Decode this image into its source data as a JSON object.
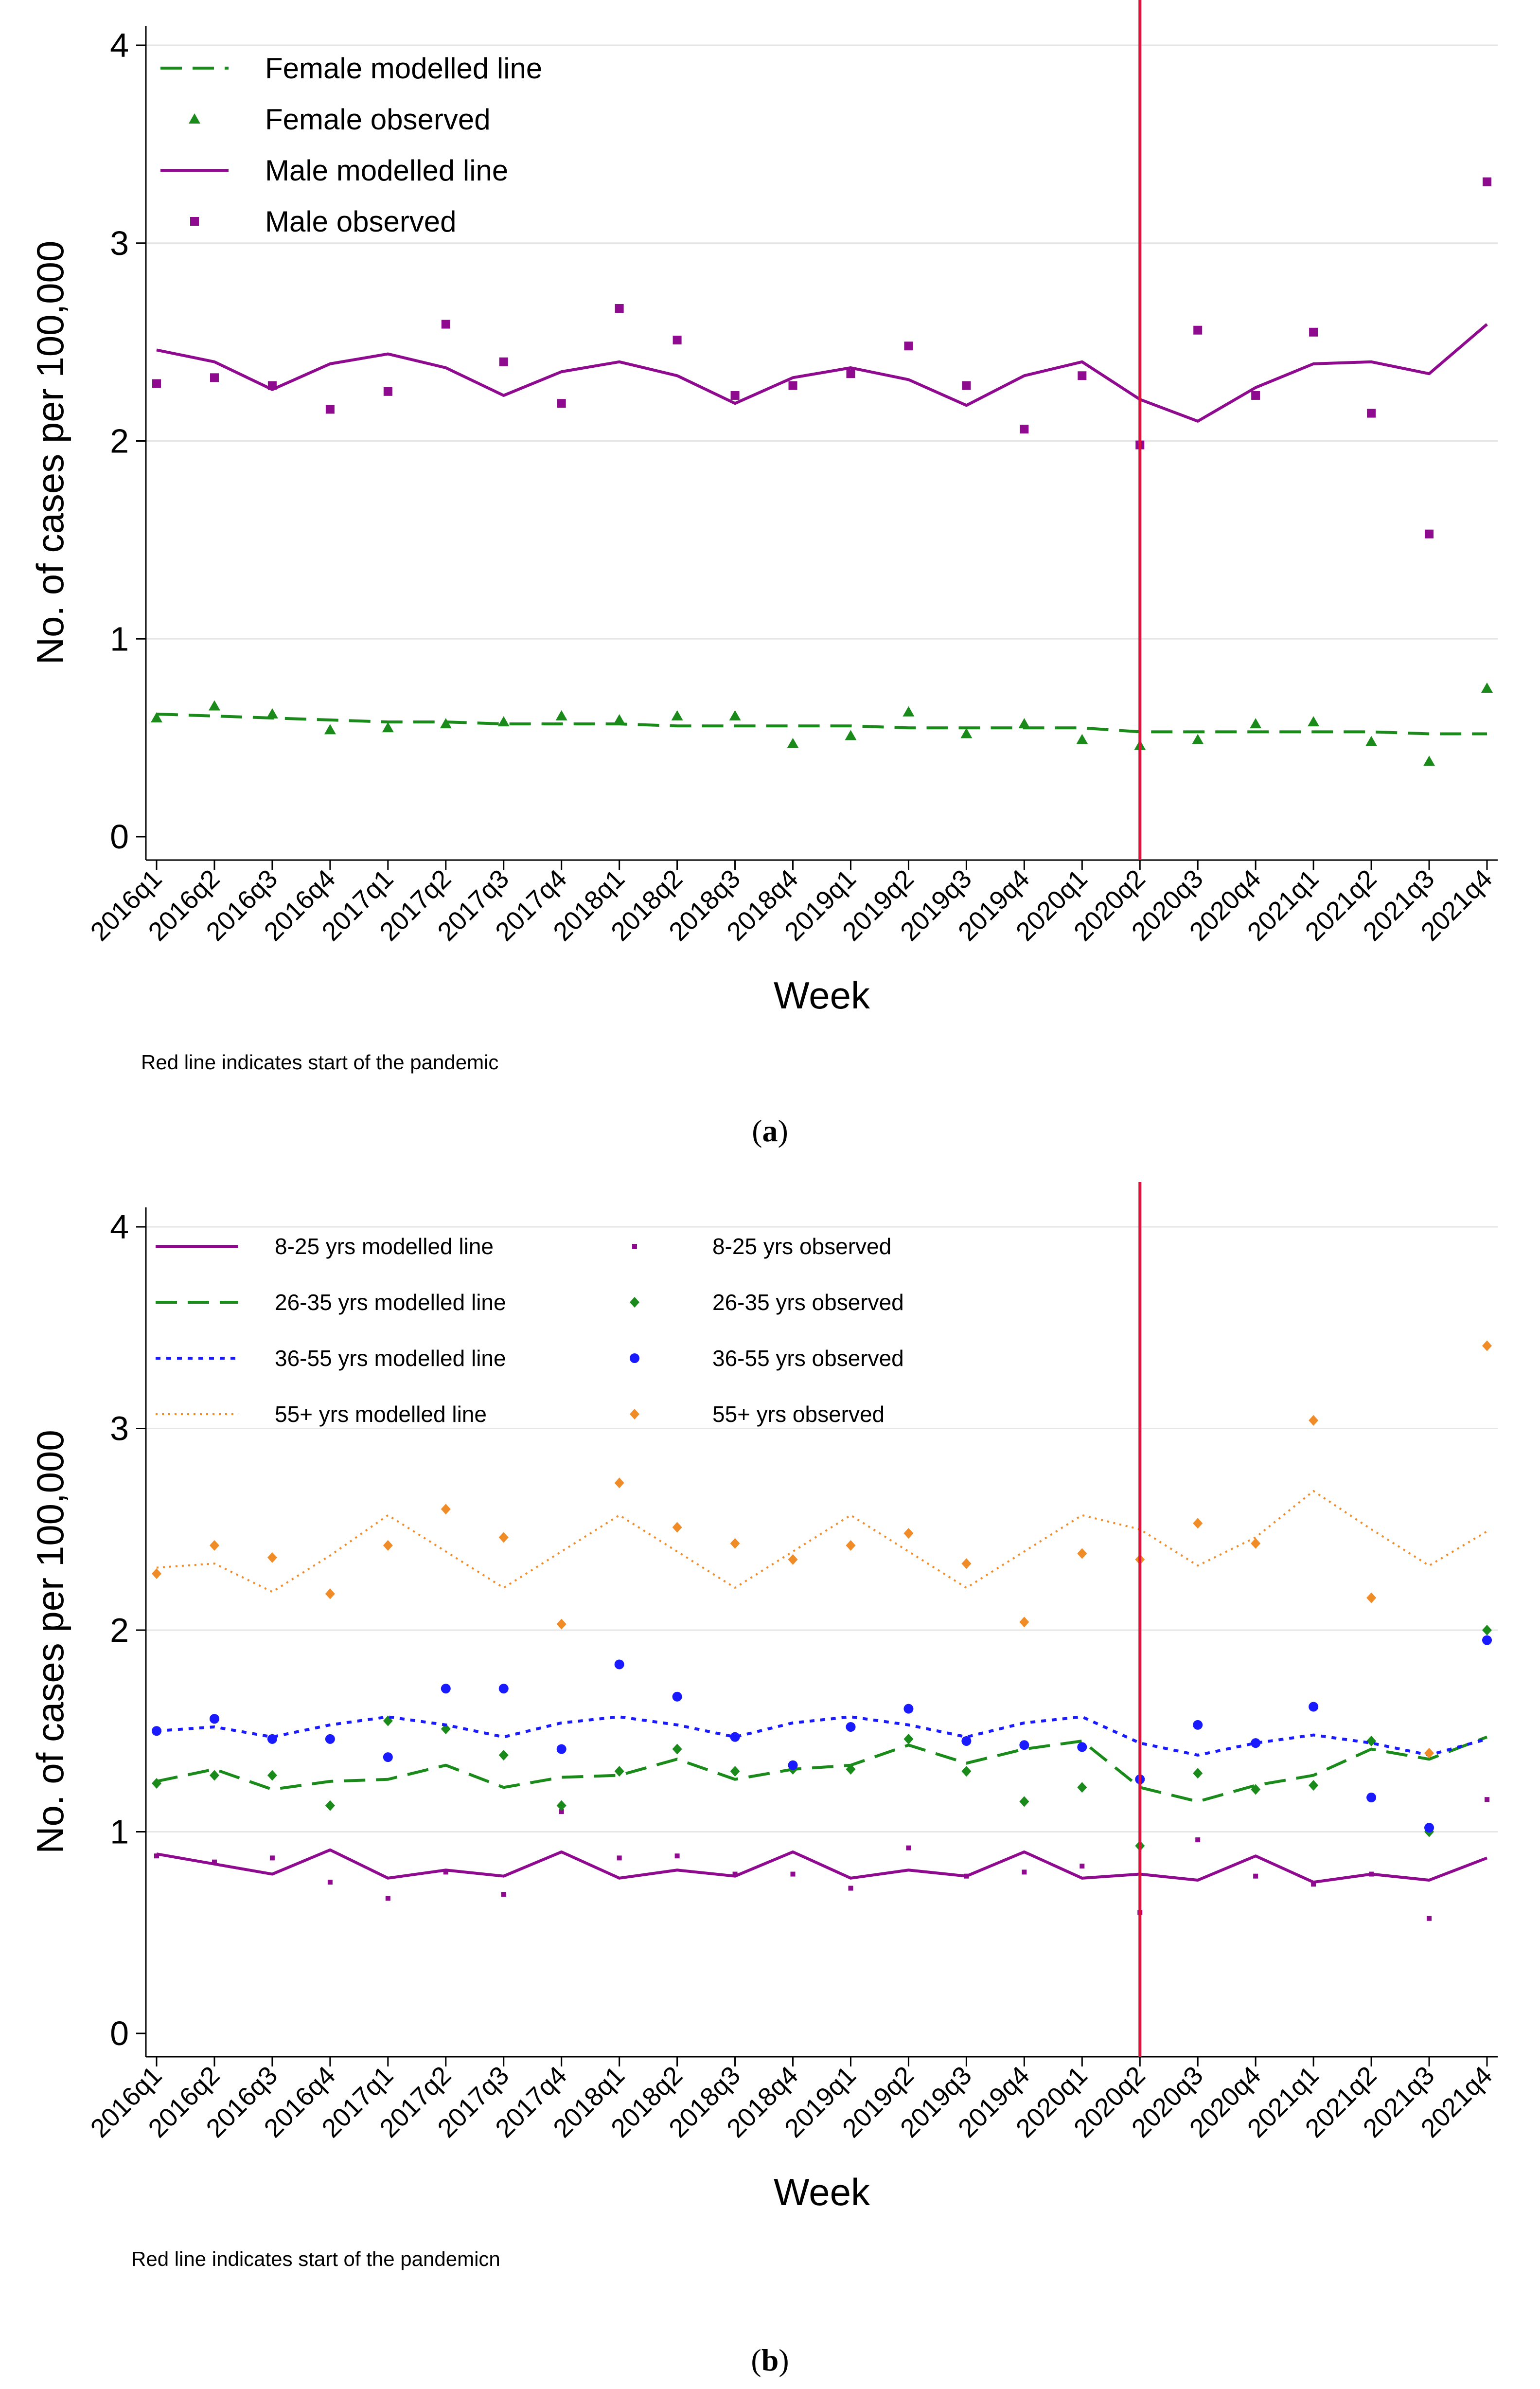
{
  "chart_data": [
    {
      "type": "line",
      "panel": "a",
      "panel_label": "a",
      "title": "",
      "xlabel": "Week",
      "ylabel": "No. of cases per 100,000",
      "note": "Red line indicates start of the pandemic",
      "ylim": [
        0,
        4
      ],
      "yticks": [
        "0",
        "1",
        "2",
        "3",
        "4"
      ],
      "grid": true,
      "legend_position": "top-left",
      "pandemic_marker_category": "2020q2",
      "categories": [
        "2016q1",
        "2016q2",
        "2016q3",
        "2016q4",
        "2017q1",
        "2017q2",
        "2017q3",
        "2017q4",
        "2018q1",
        "2018q2",
        "2018q3",
        "2018q4",
        "2019q1",
        "2019q2",
        "2019q3",
        "2019q4",
        "2020q1",
        "2020q2",
        "2020q3",
        "2020q4",
        "2021q1",
        "2021q2",
        "2021q3",
        "2021q4"
      ],
      "series": [
        {
          "name": "Female modelled line",
          "kind": "line",
          "style": "dash",
          "color": "#1a8a1a",
          "values": [
            0.62,
            0.61,
            0.6,
            0.59,
            0.58,
            0.58,
            0.57,
            0.57,
            0.57,
            0.56,
            0.56,
            0.56,
            0.56,
            0.55,
            0.55,
            0.55,
            0.55,
            0.53,
            0.53,
            0.53,
            0.53,
            0.53,
            0.52,
            0.52
          ]
        },
        {
          "name": "Female observed",
          "kind": "marker",
          "marker": "triangle",
          "color": "#1a8a1a",
          "values": [
            0.6,
            0.66,
            0.62,
            0.54,
            0.55,
            0.57,
            0.58,
            0.61,
            0.59,
            0.61,
            0.61,
            0.47,
            0.51,
            0.63,
            0.52,
            0.57,
            0.49,
            0.46,
            0.49,
            0.57,
            0.58,
            0.48,
            0.38,
            0.75
          ]
        },
        {
          "name": "Male modelled line",
          "kind": "line",
          "style": "solid",
          "color": "#8e0a8e",
          "values": [
            2.46,
            2.4,
            2.26,
            2.39,
            2.44,
            2.37,
            2.23,
            2.35,
            2.4,
            2.33,
            2.19,
            2.32,
            2.37,
            2.31,
            2.18,
            2.33,
            2.4,
            2.21,
            2.1,
            2.27,
            2.39,
            2.4,
            2.34,
            2.59
          ]
        },
        {
          "name": "Male observed",
          "kind": "marker",
          "marker": "square",
          "color": "#8e0a8e",
          "values": [
            2.29,
            2.32,
            2.28,
            2.16,
            2.25,
            2.59,
            2.4,
            2.19,
            2.67,
            2.51,
            2.23,
            2.28,
            2.34,
            2.48,
            2.28,
            2.06,
            2.33,
            1.98,
            2.56,
            2.23,
            2.55,
            2.14,
            1.53,
            3.31
          ]
        }
      ]
    },
    {
      "type": "line",
      "panel": "b",
      "panel_label": "b",
      "title": "",
      "xlabel": "Week",
      "ylabel": "No. of cases per 100,000",
      "note": "Red line indicates start of the pandemicn",
      "ylim": [
        0,
        4
      ],
      "yticks": [
        "0",
        "1",
        "2",
        "3",
        "4"
      ],
      "grid": true,
      "legend_position": "top-left",
      "pandemic_marker_category": "2020q2",
      "categories": [
        "2016q1",
        "2016q2",
        "2016q3",
        "2016q4",
        "2017q1",
        "2017q2",
        "2017q3",
        "2017q4",
        "2018q1",
        "2018q2",
        "2018q3",
        "2018q4",
        "2019q1",
        "2019q2",
        "2019q3",
        "2019q4",
        "2020q1",
        "2020q2",
        "2020q3",
        "2020q4",
        "2021q1",
        "2021q2",
        "2021q3",
        "2021q4"
      ],
      "series": [
        {
          "name": "8-25 yrs modelled line",
          "kind": "line",
          "style": "solid",
          "color": "#8e0a8e",
          "values": [
            0.89,
            0.84,
            0.79,
            0.91,
            0.77,
            0.81,
            0.78,
            0.9,
            0.77,
            0.81,
            0.78,
            0.9,
            0.77,
            0.81,
            0.78,
            0.9,
            0.77,
            0.79,
            0.76,
            0.88,
            0.75,
            0.79,
            0.76,
            0.87
          ]
        },
        {
          "name": "8-25 yrs observed",
          "kind": "marker",
          "marker": "dot-small",
          "color": "#8e0a8e",
          "values": [
            0.88,
            0.85,
            0.87,
            0.75,
            0.67,
            0.8,
            0.69,
            1.1,
            0.87,
            0.88,
            0.79,
            0.79,
            0.72,
            0.92,
            0.78,
            0.8,
            0.83,
            0.6,
            0.96,
            0.78,
            0.74,
            0.79,
            0.57,
            1.16
          ]
        },
        {
          "name": "26-35 yrs modelled line",
          "kind": "line",
          "style": "dash",
          "color": "#1a8a1a",
          "values": [
            1.25,
            1.31,
            1.21,
            1.25,
            1.26,
            1.33,
            1.22,
            1.27,
            1.28,
            1.36,
            1.26,
            1.31,
            1.33,
            1.43,
            1.34,
            1.41,
            1.45,
            1.22,
            1.15,
            1.23,
            1.28,
            1.41,
            1.36,
            1.47
          ]
        },
        {
          "name": "26-35 yrs observed",
          "kind": "marker",
          "marker": "diamond",
          "color": "#1a8a1a",
          "values": [
            1.24,
            1.28,
            1.28,
            1.13,
            1.55,
            1.51,
            1.38,
            1.13,
            1.3,
            1.41,
            1.3,
            1.31,
            1.31,
            1.46,
            1.3,
            1.15,
            1.22,
            0.93,
            1.29,
            1.21,
            1.23,
            1.45,
            1.0,
            2.0
          ]
        },
        {
          "name": "36-55 yrs modelled line",
          "kind": "line",
          "style": "dot",
          "color": "#1a1aff",
          "values": [
            1.5,
            1.52,
            1.47,
            1.53,
            1.57,
            1.53,
            1.47,
            1.54,
            1.57,
            1.53,
            1.47,
            1.54,
            1.57,
            1.53,
            1.47,
            1.54,
            1.57,
            1.44,
            1.38,
            1.44,
            1.48,
            1.44,
            1.38,
            1.46
          ]
        },
        {
          "name": "36-55 yrs observed",
          "kind": "marker",
          "marker": "circle",
          "color": "#1a1aff",
          "values": [
            1.5,
            1.56,
            1.46,
            1.46,
            1.37,
            1.71,
            1.71,
            1.41,
            1.83,
            1.67,
            1.47,
            1.33,
            1.52,
            1.61,
            1.45,
            1.43,
            1.42,
            1.26,
            1.53,
            1.44,
            1.62,
            1.17,
            1.02,
            1.95
          ]
        },
        {
          "name": "55+ yrs modelled line",
          "kind": "line",
          "style": "finedot",
          "color": "#f08c28",
          "values": [
            2.31,
            2.33,
            2.19,
            2.37,
            2.57,
            2.39,
            2.21,
            2.39,
            2.57,
            2.39,
            2.21,
            2.39,
            2.57,
            2.39,
            2.21,
            2.39,
            2.57,
            2.5,
            2.32,
            2.46,
            2.69,
            2.5,
            2.32,
            2.49
          ]
        },
        {
          "name": "55+ yrs observed",
          "kind": "marker",
          "marker": "diamond",
          "color": "#f08c28",
          "values": [
            2.28,
            2.42,
            2.36,
            2.18,
            2.42,
            2.6,
            2.46,
            2.03,
            2.73,
            2.51,
            2.43,
            2.35,
            2.42,
            2.48,
            2.33,
            2.04,
            2.38,
            2.35,
            2.53,
            2.43,
            3.04,
            2.16,
            1.39,
            3.41
          ]
        }
      ]
    }
  ]
}
